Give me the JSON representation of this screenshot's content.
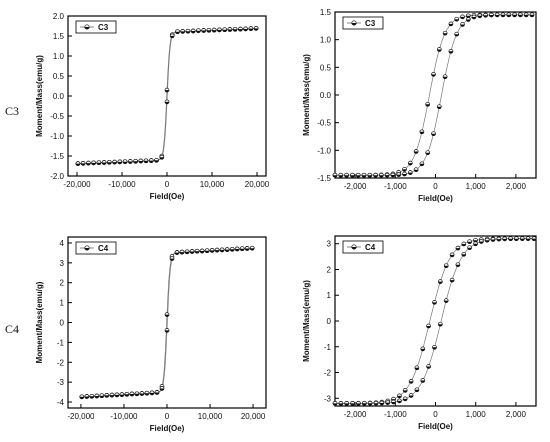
{
  "row_labels": [
    "C3",
    "C4"
  ],
  "chart_data": [
    {
      "type": "scatter",
      "panel": "top-left",
      "legend": "C3",
      "legend_position": "top-left",
      "xlabel": "Field(Oe)",
      "ylabel": "Moment/Mass(emu/g)",
      "xlim": [
        -22000,
        22000
      ],
      "ylim": [
        -2.0,
        2.0
      ],
      "xticks": [
        -20000,
        -10000,
        0,
        10000,
        20000
      ],
      "xtick_labels": [
        "-20,000",
        "-10,000",
        "0",
        "10,000",
        "20,000"
      ],
      "yticks": [
        -2.0,
        -1.5,
        -1.0,
        -0.5,
        0.0,
        0.5,
        1.0,
        1.5,
        2.0
      ],
      "ytick_labels": [
        "-2.0",
        "-1.5",
        "-1.0",
        "-0.5",
        "0.0",
        "0.5",
        "1.0",
        "1.5",
        "2.0"
      ],
      "model": {
        "ms": 1.6,
        "h0": 650,
        "hc": 60,
        "chi": 4.5e-06
      },
      "x_range": [
        -19800,
        19800
      ],
      "marker": "half-filled-circle",
      "grid": false
    },
    {
      "type": "scatter",
      "panel": "top-right",
      "legend": "C3",
      "legend_position": "top-left",
      "xlabel": "Field(Oe)",
      "ylabel": "Moment/Mass(emu/g)",
      "xlim": [
        -2500,
        2500
      ],
      "ylim": [
        -1.5,
        1.5
      ],
      "xticks": [
        -2000,
        -1000,
        0,
        1000,
        2000
      ],
      "xtick_labels": [
        "-2,000",
        "-1,000",
        "0",
        "1,000",
        "2,000"
      ],
      "yticks": [
        -1.5,
        -1.0,
        -0.5,
        0.0,
        0.5,
        1.0,
        1.5
      ],
      "ytick_labels": [
        "-1.5",
        "-1.0",
        "-0.5",
        "0.0",
        "0.5",
        "1.0",
        "1.5"
      ],
      "model": {
        "ms": 1.45,
        "h0": 380,
        "hc": 150,
        "chi": 0
      },
      "x_range": [
        -2500,
        2400
      ],
      "marker": "half-filled-circle",
      "grid": false
    },
    {
      "type": "scatter",
      "panel": "bottom-left",
      "legend": "C4",
      "legend_position": "top-left",
      "xlabel": "Field(Oe)",
      "ylabel": "Moment/Mass(emu/g)",
      "xlim": [
        -23000,
        23000
      ],
      "ylim": [
        -4.3,
        4.3
      ],
      "xticks": [
        -20000,
        -10000,
        0,
        10000,
        20000
      ],
      "xtick_labels": [
        "-20,000",
        "-10,000",
        "0",
        "10,000",
        "20,000"
      ],
      "yticks": [
        -4,
        -3,
        -2,
        -1,
        0,
        1,
        2,
        3,
        4
      ],
      "ytick_labels": [
        "-4",
        "-3",
        "-2",
        "-1",
        "0",
        "1",
        "2",
        "3",
        "4"
      ],
      "model": {
        "ms": 3.5,
        "h0": 700,
        "hc": 80,
        "chi": 1.2e-05
      },
      "x_range": [
        -19800,
        19800
      ],
      "marker": "half-filled-circle",
      "grid": false
    },
    {
      "type": "scatter",
      "panel": "bottom-right",
      "legend": "C4",
      "legend_position": "top-left",
      "xlabel": "Field(Oe)",
      "ylabel": "Moment/Mass(emu/g)",
      "xlim": [
        -2500,
        2500
      ],
      "ylim": [
        -3.3,
        3.3
      ],
      "xticks": [
        -2000,
        -1000,
        0,
        1000,
        2000
      ],
      "xtick_labels": [
        "-2,000",
        "-1,000",
        "0",
        "1,000",
        "2,000"
      ],
      "yticks": [
        -3,
        -2,
        -1,
        0,
        1,
        2,
        3
      ],
      "ytick_labels": [
        "-3",
        "-2",
        "-1",
        "0",
        "1",
        "2",
        "3"
      ],
      "model": {
        "ms": 3.2,
        "h0": 500,
        "hc": 140,
        "chi": 0
      },
      "x_range": [
        -2500,
        2450
      ],
      "marker": "half-filled-circle",
      "grid": false
    }
  ]
}
